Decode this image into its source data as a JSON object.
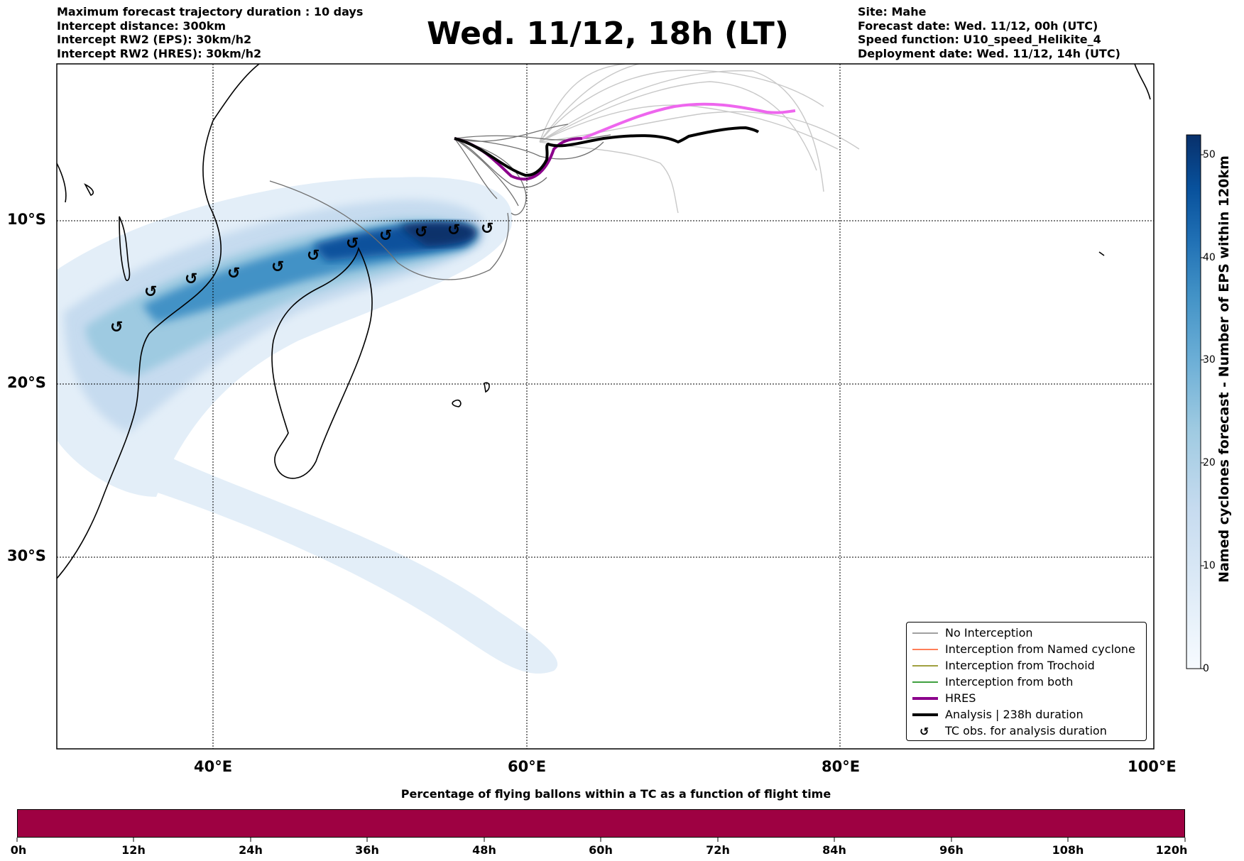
{
  "header": {
    "left_lines": [
      "Maximum forecast trajectory duration : 10 days",
      "Intercept distance: 300km",
      "Intercept RW2 (EPS):  30km/h2",
      "Intercept RW2 (HRES): 30km/h2"
    ],
    "title": "Wed. 11/12, 18h (LT)",
    "right_lines": [
      "Site: Mahe",
      "Forecast date: Wed. 11/12, 00h (UTC)",
      "Speed function: U10_speed_Helikite_4",
      "Deployment date: Wed. 11/12, 14h (UTC)"
    ]
  },
  "map": {
    "lon_labels": [
      "40°E",
      "60°E",
      "80°E",
      "100°E"
    ],
    "lat_labels": [
      "10°S",
      "20°S",
      "30°S"
    ],
    "colors": {
      "analysis": "#000000",
      "hres": "#8b008b",
      "hres_future": "#ee66ee",
      "ensemble": "#777777",
      "ensemble_light": "#c4c4c4",
      "coast": "#000000"
    }
  },
  "legend": {
    "items": [
      {
        "label": "No Interception",
        "color": "#808080",
        "style": "thin"
      },
      {
        "label": "Interception from Named cyclone",
        "color": "#ff5522",
        "style": "thin"
      },
      {
        "label": "Interception from Trochoid",
        "color": "#808000",
        "style": "thin"
      },
      {
        "label": "Interception from both",
        "color": "#008000",
        "style": "thin"
      },
      {
        "label": "HRES",
        "color": "#8b008b",
        "style": "thick"
      },
      {
        "label": "Analysis | 238h duration",
        "color": "#000000",
        "style": "thick"
      },
      {
        "label": "TC obs. for analysis duration",
        "color": "#000000",
        "style": "cyclone-icon"
      }
    ]
  },
  "colorbar": {
    "label": "Named cyclones forecast - Number of EPS within 120km",
    "ticks": [
      "0",
      "10",
      "20",
      "30",
      "40",
      "50"
    ],
    "colors": [
      "#f7fbff",
      "#deebf7",
      "#c6dbef",
      "#9ecae1",
      "#6baed6",
      "#4292c6",
      "#2171b5",
      "#08519c",
      "#08306b"
    ]
  },
  "time_bar": {
    "title": "Percentage of flying ballons within a TC as a function of flight time",
    "ticks": [
      "0h",
      "12h",
      "24h",
      "36h",
      "48h",
      "60h",
      "72h",
      "84h",
      "96h",
      "108h",
      "120h"
    ],
    "color": "#9e0142"
  }
}
